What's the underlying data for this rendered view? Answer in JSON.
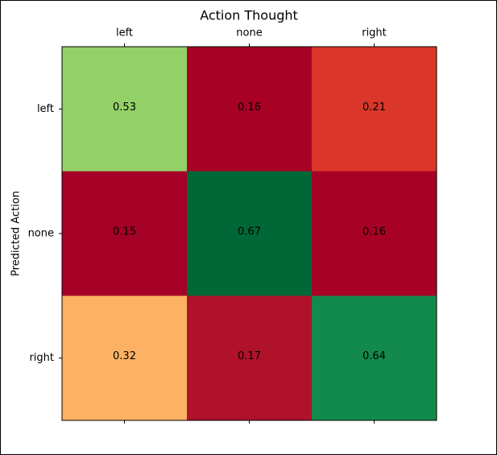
{
  "chart_data": {
    "type": "heatmap",
    "title": "Action Thought",
    "ylabel": "Predicted Action",
    "x_categories": [
      "left",
      "none",
      "right"
    ],
    "y_categories": [
      "left",
      "none",
      "right"
    ],
    "values": [
      [
        0.53,
        0.16,
        0.21
      ],
      [
        0.15,
        0.67,
        0.16
      ],
      [
        0.32,
        0.17,
        0.64
      ]
    ],
    "colors": [
      [
        "#93d068",
        "#a70226",
        "#da362a"
      ],
      [
        "#a50026",
        "#006837",
        "#a70226"
      ],
      [
        "#fdb163",
        "#b0112b",
        "#138a4d"
      ]
    ]
  }
}
